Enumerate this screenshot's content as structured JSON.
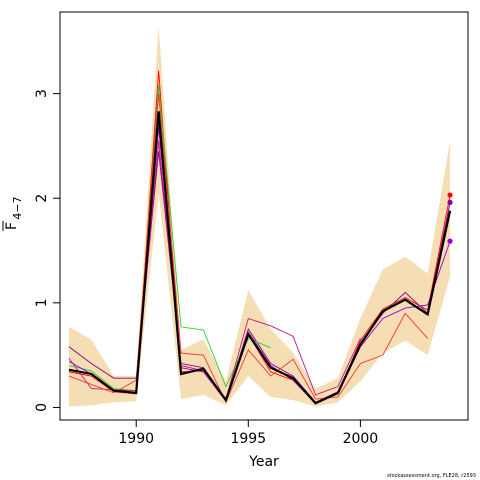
{
  "chart_data": {
    "type": "line",
    "xlabel": "Year",
    "ylabel": "F 4-7",
    "ylabel_main": "F",
    "ylabel_sub": "4−7",
    "xlim": [
      1986.6,
      2004.8
    ],
    "ylim": [
      -0.12,
      3.78
    ],
    "x_ticks": [
      1990,
      1995,
      2000
    ],
    "y_ticks": [
      0,
      1,
      2,
      3
    ],
    "credit": "stockassessment.org, FLE28, r2593",
    "colors": {
      "band": "#f5deb3",
      "estimate": "#000000",
      "series": [
        "#ff0000",
        "#8b008b",
        "#32cd32",
        "#c71585",
        "#9400d3",
        "#ff3030"
      ],
      "points": [
        "#ff0000",
        "#8b008b",
        "#9400d3"
      ]
    },
    "years": [
      1987,
      1988,
      1989,
      1990,
      1991,
      1992,
      1993,
      1994,
      1995,
      1996,
      1997,
      1998,
      1999,
      2000,
      2001,
      2002,
      2003,
      2004
    ],
    "band_upper": [
      0.77,
      0.65,
      0.3,
      0.3,
      3.65,
      0.55,
      0.65,
      0.25,
      1.12,
      0.75,
      0.52,
      0.18,
      0.28,
      0.85,
      1.32,
      1.44,
      1.28,
      2.55
    ],
    "band_lower": [
      0.01,
      0.02,
      0.05,
      0.06,
      2.05,
      0.08,
      0.12,
      0.02,
      0.3,
      0.1,
      0.07,
      0.01,
      0.05,
      0.25,
      0.52,
      0.64,
      0.5,
      1.25
    ],
    "estimate": [
      0.36,
      0.32,
      0.16,
      0.14,
      2.83,
      0.32,
      0.37,
      0.07,
      0.7,
      0.38,
      0.28,
      0.04,
      0.14,
      0.6,
      0.92,
      1.03,
      0.89,
      1.88
    ],
    "series": [
      {
        "years": [
          1987,
          1988,
          1989,
          1990,
          1991,
          1992,
          1993,
          1994,
          1995,
          1996,
          1997,
          1998,
          1999,
          2000,
          2001,
          2002,
          2003,
          2004
        ],
        "values": [
          0.34,
          0.3,
          0.15,
          0.13,
          3.22,
          0.34,
          0.35,
          0.06,
          0.7,
          0.34,
          0.26,
          0.04,
          0.13,
          0.64,
          0.94,
          1.05,
          0.93,
          2.03
        ]
      },
      {
        "years": [
          1987,
          1988,
          1989,
          1990,
          1991,
          1992,
          1993,
          1994,
          1995,
          1996,
          1997,
          1998,
          1999,
          2000,
          2001,
          2002,
          2003,
          2004
        ],
        "values": [
          0.58,
          0.42,
          0.28,
          0.28,
          2.45,
          0.42,
          0.38,
          0.07,
          0.75,
          0.42,
          0.3,
          0.05,
          0.15,
          0.62,
          0.9,
          1.1,
          0.9,
          1.96
        ]
      },
      {
        "years": [
          1987,
          1988,
          1989,
          1990,
          1991,
          1992,
          1993,
          1994,
          1995,
          1996
        ],
        "values": [
          0.4,
          0.35,
          0.18,
          0.16,
          3.08,
          0.77,
          0.74,
          0.2,
          0.66,
          0.57
        ]
      },
      {
        "years": [
          1987,
          1988,
          1989,
          1990,
          1991,
          1992,
          1993,
          1994,
          1995,
          1996,
          1997,
          1998,
          1999,
          2000
        ],
        "values": [
          0.47,
          0.18,
          0.17,
          0.16,
          2.55,
          0.4,
          0.35,
          0.08,
          0.85,
          0.78,
          0.68,
          0.12,
          0.2,
          0.66
        ]
      },
      {
        "years": [
          1987,
          1988,
          1989,
          1990,
          1991,
          1992,
          1993,
          1994,
          1995,
          1996,
          1997,
          1998,
          1999,
          2000,
          2001,
          2002,
          2003,
          2004
        ],
        "values": [
          0.44,
          0.32,
          0.16,
          0.14,
          2.68,
          0.38,
          0.34,
          0.06,
          0.72,
          0.4,
          0.26,
          0.04,
          0.13,
          0.58,
          0.85,
          0.95,
          0.98,
          1.59
        ]
      },
      {
        "years": [
          1987,
          1988,
          1989,
          1990,
          1991,
          1992,
          1993,
          1994,
          1995,
          1996,
          1997,
          1998,
          1999,
          2000,
          2001,
          2002,
          2003
        ],
        "values": [
          0.3,
          0.22,
          0.14,
          0.26,
          3.0,
          0.52,
          0.5,
          0.05,
          0.55,
          0.3,
          0.46,
          0.08,
          0.1,
          0.42,
          0.5,
          0.9,
          0.66
        ]
      }
    ],
    "endpoints": [
      {
        "year": 2004,
        "value": 2.03,
        "color_index": 0
      },
      {
        "year": 2004,
        "value": 1.96,
        "color_index": 1
      },
      {
        "year": 2004,
        "value": 1.59,
        "color_index": 2
      }
    ]
  }
}
